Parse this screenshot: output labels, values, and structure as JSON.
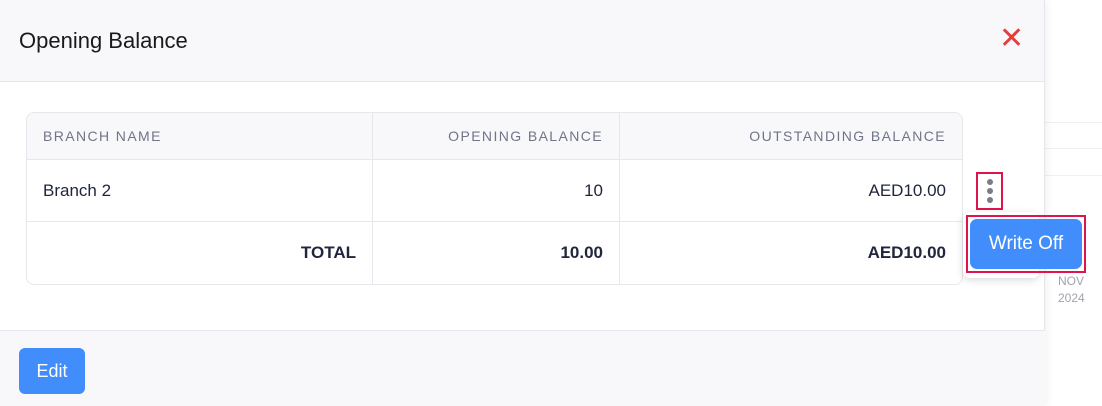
{
  "modal": {
    "title": "Opening Balance",
    "close_icon": "close-icon",
    "accent": "#408dfb",
    "close_color": "#e53d3d"
  },
  "table": {
    "headers": [
      "BRANCH NAME",
      "OPENING BALANCE",
      "OUTSTANDING BALANCE"
    ],
    "rows": [
      [
        "Branch 2",
        "10",
        "AED10.00"
      ]
    ],
    "total": {
      "label": "TOTAL",
      "opening": "10.00",
      "outstanding": "AED10.00"
    }
  },
  "actions": {
    "more_icon": "vertical-ellipsis-icon",
    "write_off": "Write Off"
  },
  "footer": {
    "edit": "Edit"
  },
  "background": {
    "month": "NOV",
    "year": "2024"
  }
}
